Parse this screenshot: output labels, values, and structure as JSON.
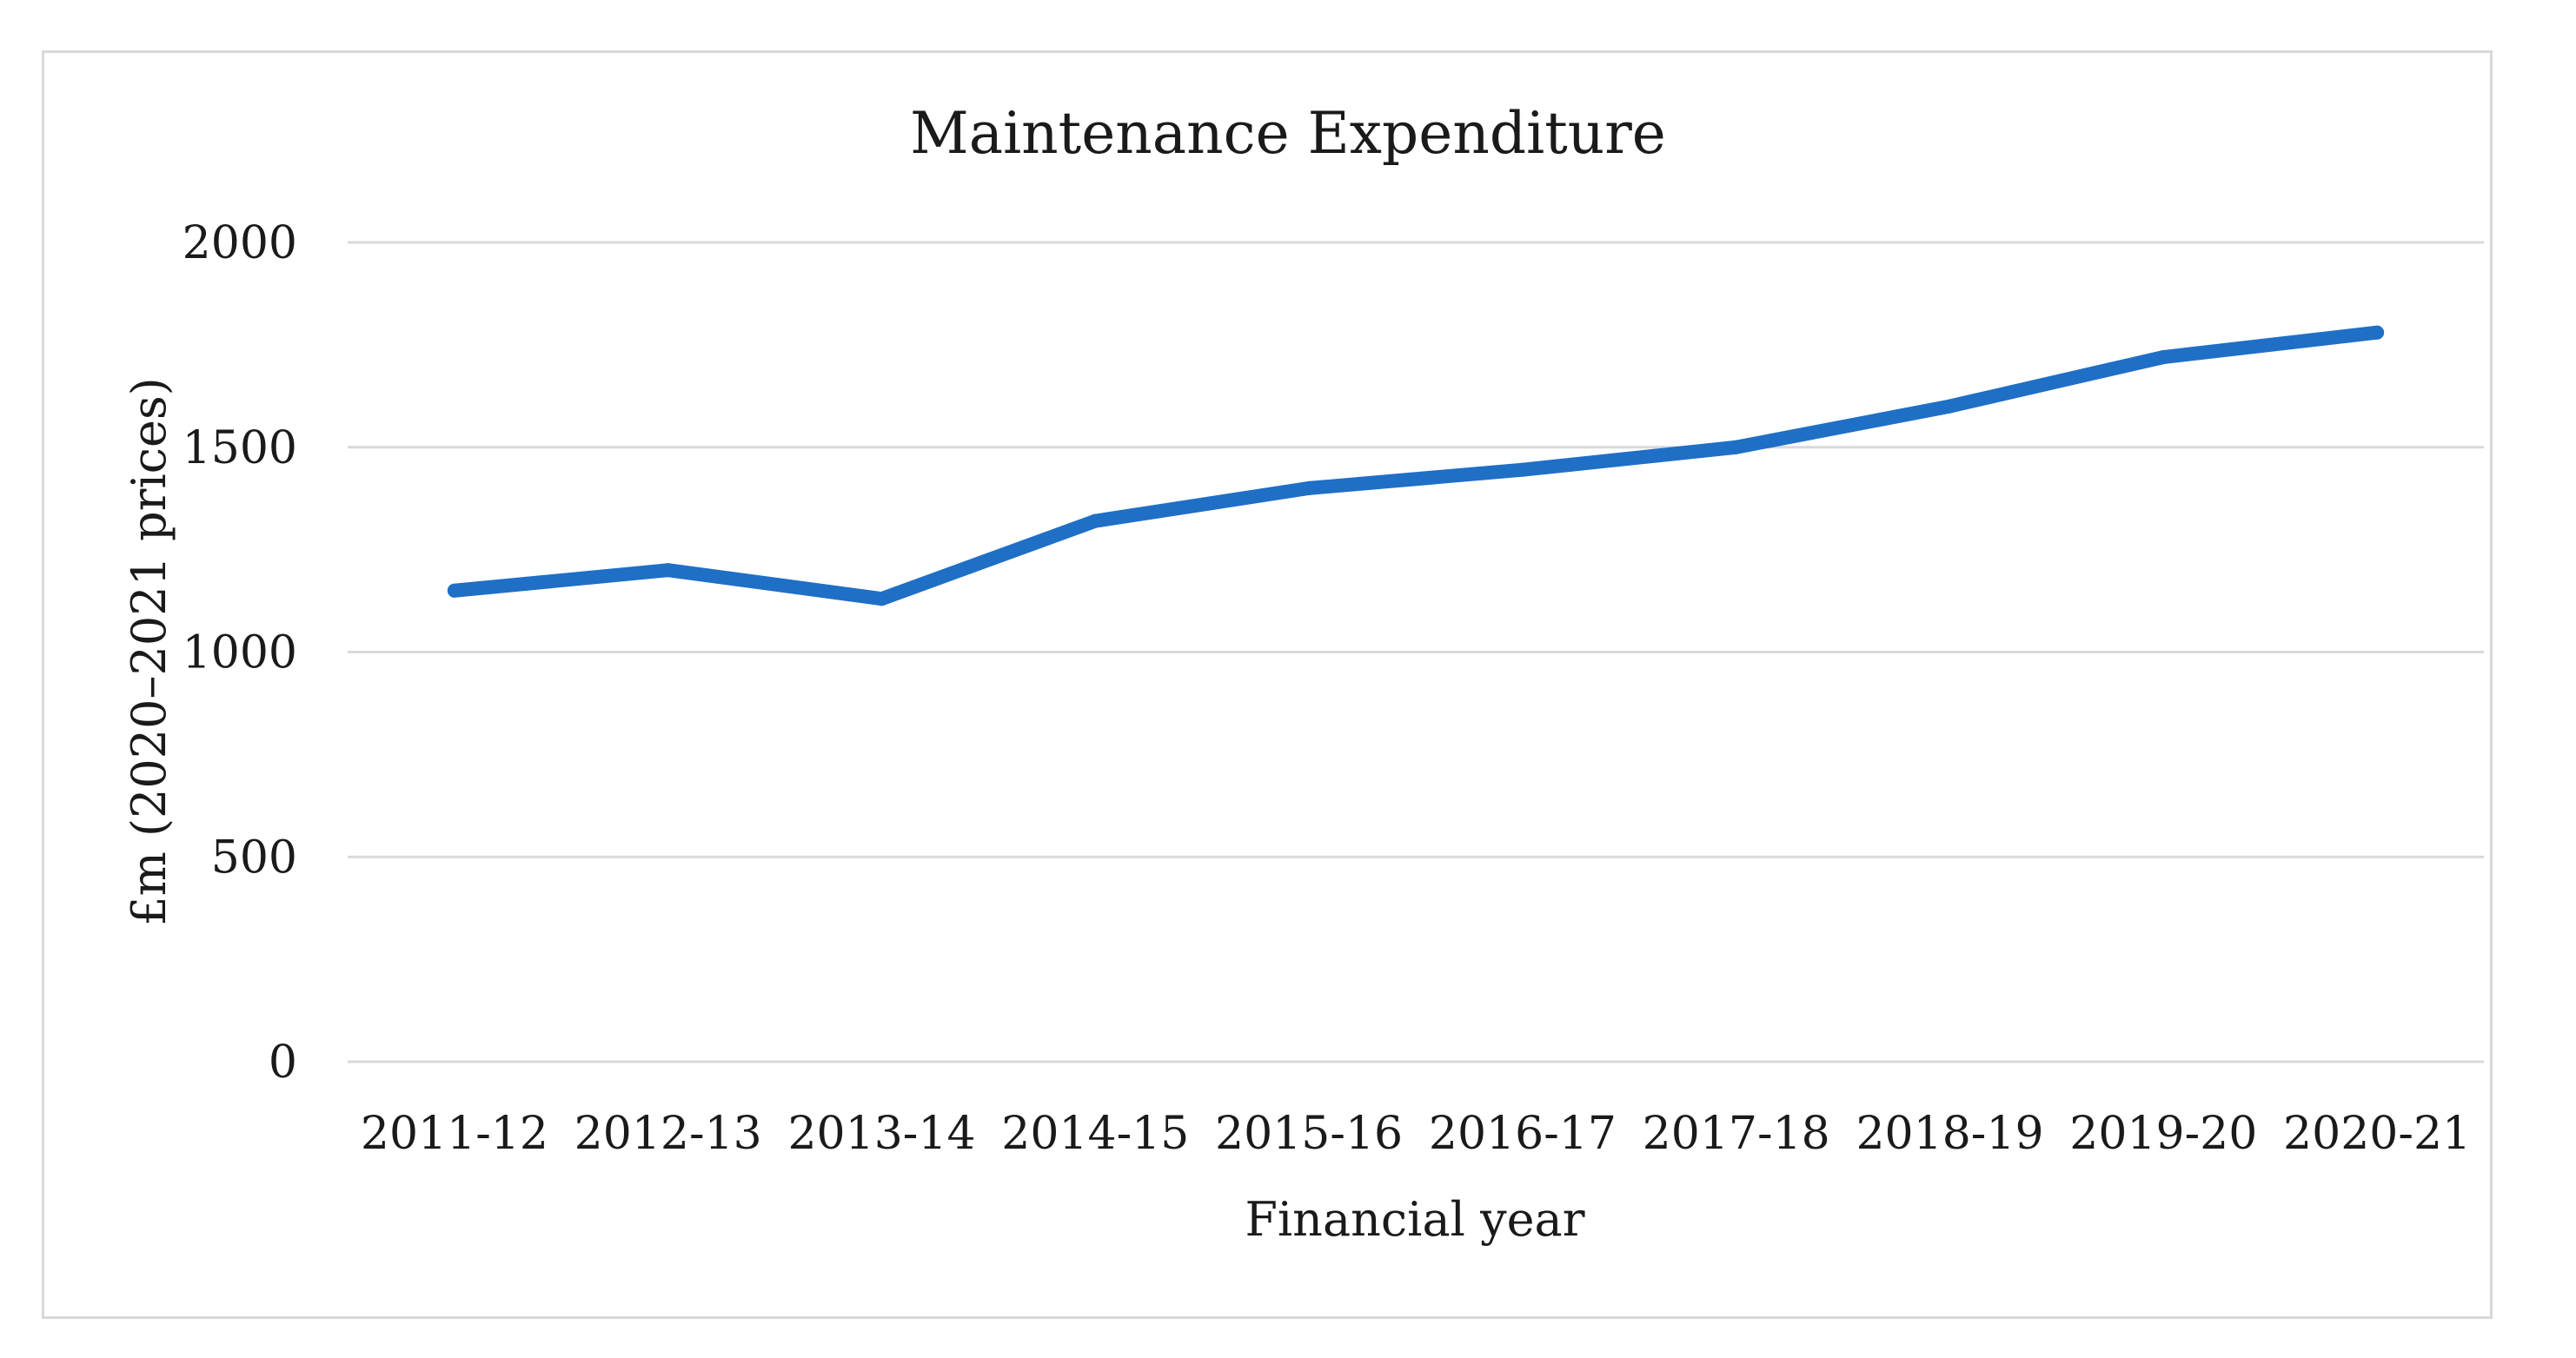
{
  "chart_data": {
    "type": "line",
    "title": "Maintenance Expenditure",
    "xlabel": "Financial year",
    "ylabel": "£m (2020–2021 prices)",
    "categories": [
      "2011-12",
      "2012-13",
      "2013-14",
      "2014-15",
      "2015-16",
      "2016-17",
      "2017-18",
      "2018-19",
      "2019-20",
      "2020-21"
    ],
    "series": [
      {
        "name": "Maintenance Expenditure",
        "color": "#1f6fc6",
        "values": [
          1150,
          1200,
          1130,
          1320,
          1400,
          1445,
          1500,
          1600,
          1720,
          1780
        ]
      }
    ],
    "ylim": [
      0,
      2000
    ],
    "yticks": [
      0,
      500,
      1000,
      1500,
      2000
    ],
    "grid": true,
    "legend": "none"
  }
}
